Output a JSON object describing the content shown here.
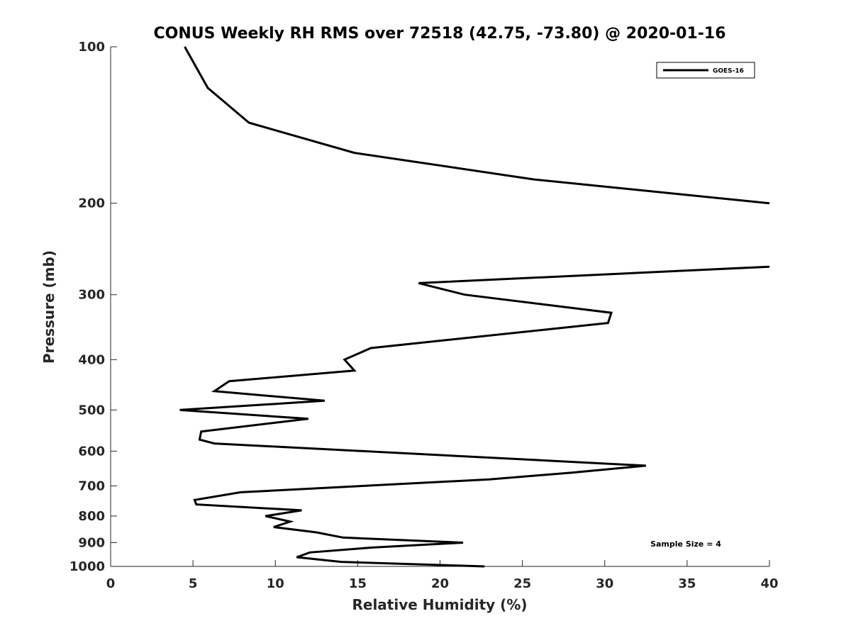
{
  "chart_data": {
    "type": "line",
    "title": "CONUS Weekly RH RMS over 72518 (42.75, -73.80) @ 2020-01-16",
    "xlabel": "Relative Humidity (%)",
    "ylabel": "Pressure (mb)",
    "xlim": [
      0,
      40
    ],
    "ylim": [
      100,
      1000
    ],
    "yscale": "log",
    "grid": false,
    "legend_location": "top-right",
    "xticks": [
      0,
      5,
      10,
      15,
      20,
      25,
      30,
      35,
      40
    ],
    "xtick_labels": [
      "0",
      "5",
      "10",
      "15",
      "20",
      "25",
      "30",
      "35",
      "40"
    ],
    "yticks": [
      100,
      200,
      300,
      400,
      500,
      600,
      700,
      800,
      900,
      1000
    ],
    "ytick_labels": [
      "100",
      "200",
      "300",
      "400",
      "500",
      "600",
      "700",
      "800",
      "900",
      "1000"
    ],
    "annotation": "Sample Size = 4",
    "series": [
      {
        "name": "GOES-16",
        "color": "#000000",
        "x": [
          4.5,
          5.9,
          8.4,
          14.8,
          25.7,
          40.0,
          null,
          40.0,
          18.7,
          21.5,
          30.4,
          30.2,
          15.8,
          14.2,
          14.8,
          7.2,
          6.3,
          13.0,
          4.2,
          12.0,
          5.5,
          5.4,
          6.3,
          32.5,
          28.0,
          23.0,
          7.9,
          5.1,
          5.2,
          11.6,
          9.4,
          10.9,
          9.9,
          12.5,
          14.1,
          21.4,
          15.8,
          12.1,
          11.3,
          14.0,
          22.7
        ],
        "y": [
          100,
          120,
          140,
          160,
          180,
          200,
          null,
          265,
          285,
          300,
          325,
          340,
          380,
          400,
          420,
          440,
          460,
          480,
          500,
          520,
          550,
          570,
          580,
          640,
          660,
          680,
          720,
          745,
          760,
          780,
          800,
          820,
          840,
          860,
          880,
          900,
          920,
          940,
          960,
          980,
          1000
        ]
      }
    ]
  }
}
